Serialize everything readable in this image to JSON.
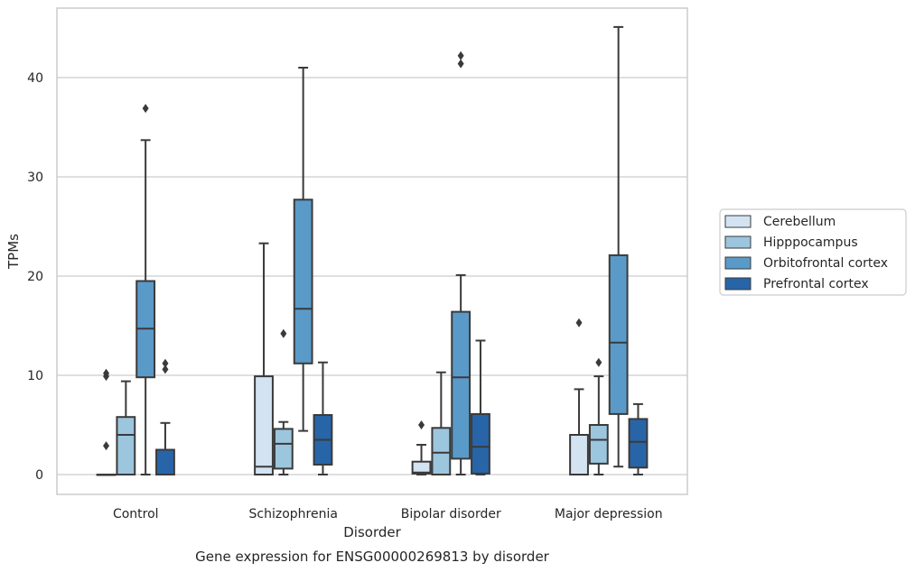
{
  "chart_data": {
    "type": "box",
    "title": "Gene expression for ENSG00000269813 by disorder",
    "xlabel": "Disorder",
    "ylabel": "TPMs",
    "ylim": [
      -2,
      47
    ],
    "yticks": [
      0,
      10,
      20,
      30,
      40
    ],
    "grid": true,
    "legend_placement": "right",
    "categories": [
      "Control",
      "Schizophrenia",
      "Bipolar disorder",
      "Major depression"
    ],
    "series": [
      {
        "name": "Cerebellum",
        "color": "#d3e3f2",
        "boxes": [
          {
            "whisker_low": 0,
            "q1": 0,
            "median": 0,
            "q3": 0,
            "whisker_high": 0,
            "outliers": [
              2.9,
              9.9,
              10.2
            ]
          },
          {
            "whisker_low": 0,
            "q1": 0,
            "median": 0.8,
            "q3": 9.9,
            "whisker_high": 23.3,
            "outliers": []
          },
          {
            "whisker_low": 0,
            "q1": 0.1,
            "median": 0.2,
            "q3": 1.3,
            "whisker_high": 3.0,
            "outliers": [
              5.0
            ]
          },
          {
            "whisker_low": 0,
            "q1": 0,
            "median": 0,
            "q3": 4.0,
            "whisker_high": 8.6,
            "outliers": [
              15.3
            ]
          }
        ]
      },
      {
        "name": "Hipppocampus",
        "color": "#9cc5de",
        "boxes": [
          {
            "whisker_low": 0,
            "q1": 0,
            "median": 4.0,
            "q3": 5.8,
            "whisker_high": 9.4,
            "outliers": []
          },
          {
            "whisker_low": 0,
            "q1": 0.6,
            "median": 3.1,
            "q3": 4.6,
            "whisker_high": 5.3,
            "outliers": [
              14.2
            ]
          },
          {
            "whisker_low": 0,
            "q1": 0,
            "median": 2.2,
            "q3": 4.7,
            "whisker_high": 10.3,
            "outliers": []
          },
          {
            "whisker_low": 0,
            "q1": 1.1,
            "median": 3.5,
            "q3": 5.0,
            "whisker_high": 9.9,
            "outliers": [
              11.3
            ]
          }
        ]
      },
      {
        "name": "Orbitofrontal cortex",
        "color": "#5a9ac8",
        "boxes": [
          {
            "whisker_low": 0,
            "q1": 9.8,
            "median": 14.7,
            "q3": 19.5,
            "whisker_high": 33.7,
            "outliers": [
              36.9
            ]
          },
          {
            "whisker_low": 4.4,
            "q1": 11.2,
            "median": 16.7,
            "q3": 27.7,
            "whisker_high": 41.0,
            "outliers": []
          },
          {
            "whisker_low": 0,
            "q1": 1.6,
            "median": 9.8,
            "q3": 16.4,
            "whisker_high": 20.1,
            "outliers": [
              41.4,
              42.2
            ]
          },
          {
            "whisker_low": 0.8,
            "q1": 6.1,
            "median": 13.3,
            "q3": 22.1,
            "whisker_high": 45.1,
            "outliers": []
          }
        ]
      },
      {
        "name": "Prefrontal cortex",
        "color": "#2865a8",
        "boxes": [
          {
            "whisker_low": 0,
            "q1": 0,
            "median": 0,
            "q3": 2.5,
            "whisker_high": 5.2,
            "outliers": [
              10.6,
              11.2
            ]
          },
          {
            "whisker_low": 0,
            "q1": 1.0,
            "median": 3.5,
            "q3": 6.0,
            "whisker_high": 11.3,
            "outliers": []
          },
          {
            "whisker_low": 0,
            "q1": 0.1,
            "median": 2.8,
            "q3": 6.1,
            "whisker_high": 13.5,
            "outliers": []
          },
          {
            "whisker_low": 0,
            "q1": 0.7,
            "median": 3.3,
            "q3": 5.6,
            "whisker_high": 7.1,
            "outliers": []
          }
        ]
      }
    ]
  }
}
